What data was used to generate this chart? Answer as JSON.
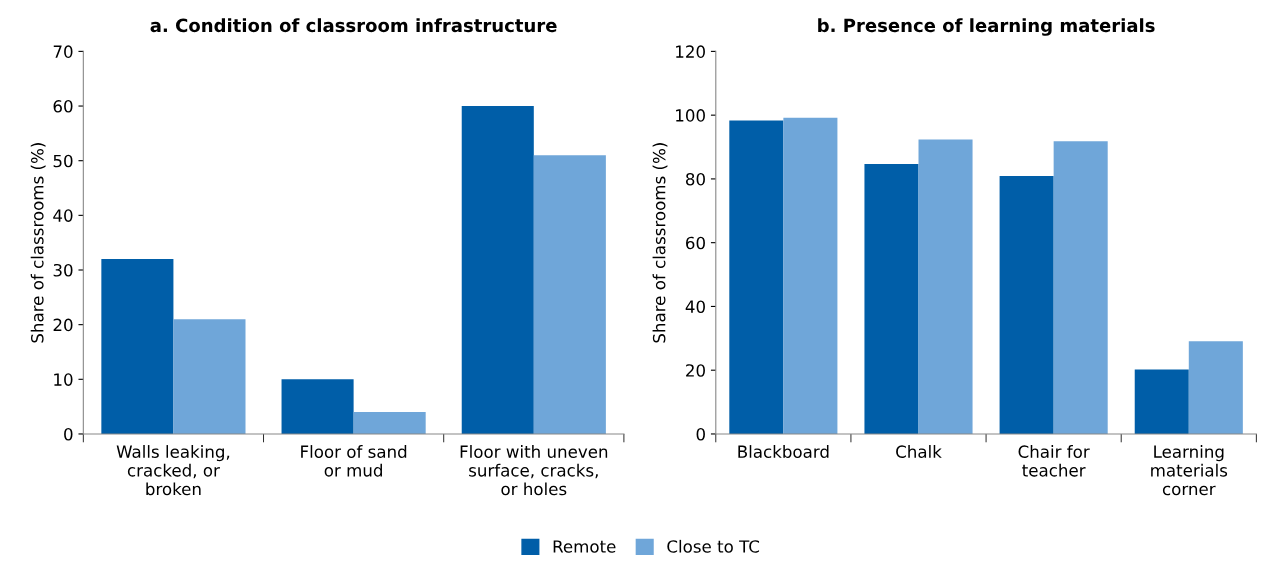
{
  "chart_data": [
    {
      "type": "bar",
      "title": "a. Condition of classroom infrastructure",
      "ylabel": "Share of classrooms (%)",
      "categories": [
        "Walls leaking,\ncracked, or\nbroken",
        "Floor of sand\nor mud",
        "Floor with uneven\nsurface, cracks,\nor holes"
      ],
      "series": [
        {
          "name": "Remote",
          "color": "#005ea8",
          "values": [
            32,
            10,
            60
          ]
        },
        {
          "name": "Close to TC",
          "color": "#6fa6d9",
          "values": [
            21,
            4,
            51
          ]
        }
      ],
      "ylim": [
        0,
        70
      ],
      "yticks": [
        0,
        10,
        20,
        30,
        40,
        50,
        60,
        70
      ],
      "grid": false,
      "legend": "bottom"
    },
    {
      "type": "bar",
      "title": "b. Presence of learning materials",
      "ylabel": "Share of classrooms (%)",
      "categories": [
        "Blackboard",
        "Chalk",
        "Chair for\nteacher",
        "Learning\nmaterials\ncorner"
      ],
      "series": [
        {
          "color": "#005ea8",
          "values": [
            98.3,
            84.7,
            80.9,
            20.2
          ]
        },
        {
          "color": "#6fa6d9",
          "values": [
            99.2,
            92.4,
            91.8,
            29.1
          ]
        }
      ],
      "ylim": [
        0,
        120
      ],
      "yticks": [
        0,
        20,
        40,
        60,
        80,
        100,
        120
      ],
      "grid": false
    }
  ]
}
